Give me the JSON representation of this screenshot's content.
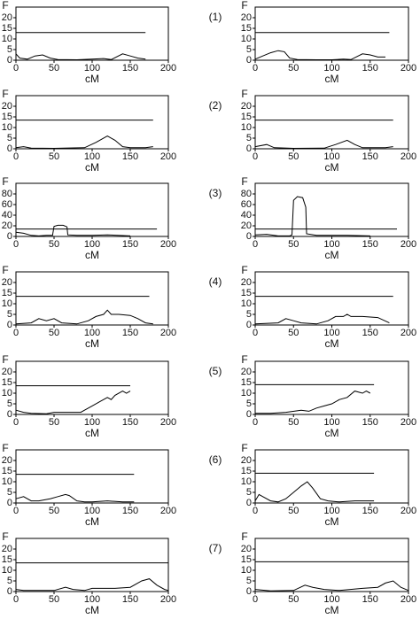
{
  "chart_data": [
    {
      "type": "line",
      "y_label": "F",
      "x_label": "cM",
      "panel": "(1)",
      "xlim": [
        0,
        200
      ],
      "xticks": [
        0,
        50,
        100,
        150,
        200
      ],
      "ylim": [
        0,
        25
      ],
      "yticks": [
        0,
        5,
        10,
        15,
        20
      ],
      "series": [
        {
          "color": "#000000",
          "x": [
            0,
            5,
            15,
            25,
            35,
            45,
            55,
            80,
            100,
            115,
            125,
            140,
            150,
            160,
            170
          ],
          "values": [
            3,
            1,
            0.5,
            2,
            2.5,
            1,
            0.3,
            0.2,
            0.5,
            0.8,
            0.3,
            3,
            2,
            1,
            0.5
          ]
        },
        {
          "color": "#000000",
          "x": [
            0,
            170
          ],
          "values": [
            13,
            13
          ]
        }
      ]
    },
    {
      "type": "line",
      "y_label": "F",
      "x_label": "cM",
      "xlim": [
        0,
        200
      ],
      "xticks": [
        0,
        50,
        100,
        150,
        200
      ],
      "ylim": [
        0,
        25
      ],
      "yticks": [
        0,
        5,
        10,
        15,
        20
      ],
      "series": [
        {
          "color": "#000000",
          "x": [
            0,
            10,
            20,
            30,
            38,
            45,
            55,
            80,
            100,
            115,
            125,
            140,
            150,
            160,
            170
          ],
          "values": [
            0.5,
            2,
            3.5,
            4.5,
            4,
            1,
            0.3,
            0.2,
            0.2,
            0.5,
            0.3,
            3,
            2.5,
            1.5,
            1.5
          ]
        },
        {
          "color": "#000000",
          "x": [
            0,
            175
          ],
          "values": [
            13,
            13
          ]
        }
      ]
    },
    {
      "type": "line",
      "y_label": "F",
      "x_label": "cM",
      "panel": "(2)",
      "xlim": [
        0,
        200
      ],
      "xticks": [
        0,
        50,
        100,
        150,
        200
      ],
      "ylim": [
        0,
        25
      ],
      "yticks": [
        0,
        5,
        10,
        15,
        20
      ],
      "series": [
        {
          "color": "#000000",
          "x": [
            0,
            10,
            20,
            50,
            90,
            105,
            120,
            130,
            140,
            150,
            170,
            180
          ],
          "values": [
            0.5,
            1,
            0.3,
            0.2,
            0.5,
            3,
            6,
            4,
            1,
            0.5,
            0.5,
            1
          ]
        },
        {
          "color": "#000000",
          "x": [
            0,
            180
          ],
          "values": [
            13.5,
            13.5
          ]
        }
      ]
    },
    {
      "type": "line",
      "y_label": "F",
      "x_label": "cM",
      "xlim": [
        0,
        200
      ],
      "xticks": [
        0,
        50,
        100,
        150,
        200
      ],
      "ylim": [
        0,
        25
      ],
      "yticks": [
        0,
        5,
        10,
        15,
        20
      ],
      "series": [
        {
          "color": "#000000",
          "x": [
            0,
            15,
            25,
            50,
            90,
            105,
            120,
            130,
            140,
            170,
            180
          ],
          "values": [
            1,
            2,
            0.5,
            0.2,
            0.3,
            2,
            4,
            2,
            0.5,
            0.5,
            1
          ]
        },
        {
          "color": "#000000",
          "x": [
            0,
            180
          ],
          "values": [
            13.5,
            13.5
          ]
        }
      ]
    },
    {
      "type": "line",
      "y_label": "F",
      "x_label": "cM",
      "panel": "(3)",
      "xlim": [
        0,
        200
      ],
      "xticks": [
        0,
        50,
        100,
        150,
        200
      ],
      "ylim": [
        0,
        100
      ],
      "yticks": [
        0,
        20,
        40,
        60,
        80
      ],
      "series": [
        {
          "color": "#000000",
          "x": [
            0,
            10,
            20,
            30,
            40,
            48,
            50,
            55,
            62,
            67,
            68,
            80,
            100,
            120,
            150
          ],
          "values": [
            8,
            6,
            2,
            1,
            2,
            2,
            19,
            21,
            21,
            18,
            3,
            2,
            2,
            3,
            1
          ]
        },
        {
          "color": "#000000",
          "x": [
            0,
            185
          ],
          "values": [
            14,
            14
          ]
        }
      ]
    },
    {
      "type": "line",
      "y_label": "F",
      "x_label": "cM",
      "xlim": [
        0,
        200
      ],
      "xticks": [
        0,
        50,
        100,
        150,
        200
      ],
      "ylim": [
        0,
        100
      ],
      "yticks": [
        0,
        20,
        40,
        60,
        80
      ],
      "series": [
        {
          "color": "#000000",
          "x": [
            0,
            15,
            30,
            45,
            48,
            50,
            55,
            62,
            66,
            67,
            80,
            120,
            150
          ],
          "values": [
            3,
            4,
            1,
            1,
            3,
            68,
            75,
            73,
            55,
            5,
            2,
            2,
            1
          ]
        },
        {
          "color": "#000000",
          "x": [
            0,
            185
          ],
          "values": [
            14,
            14
          ]
        }
      ]
    },
    {
      "type": "line",
      "y_label": "F",
      "x_label": "cM",
      "panel": "(4)",
      "xlim": [
        0,
        200
      ],
      "xticks": [
        0,
        50,
        100,
        150,
        200
      ],
      "ylim": [
        0,
        25
      ],
      "yticks": [
        0,
        5,
        10,
        15,
        20
      ],
      "series": [
        {
          "color": "#000000",
          "x": [
            0,
            20,
            30,
            40,
            50,
            60,
            80,
            95,
            105,
            115,
            120,
            125,
            135,
            150,
            160,
            170,
            180
          ],
          "values": [
            0.5,
            1,
            3,
            2,
            3,
            1,
            0.5,
            2,
            4,
            5,
            7,
            5,
            5,
            4.5,
            3,
            1,
            0.5
          ]
        },
        {
          "color": "#000000",
          "x": [
            0,
            175
          ],
          "values": [
            13.5,
            13.5
          ]
        }
      ]
    },
    {
      "type": "line",
      "y_label": "F",
      "x_label": "cM",
      "xlim": [
        0,
        200
      ],
      "xticks": [
        0,
        50,
        100,
        150,
        200
      ],
      "ylim": [
        0,
        25
      ],
      "yticks": [
        0,
        5,
        10,
        15,
        20
      ],
      "series": [
        {
          "color": "#000000",
          "x": [
            0,
            30,
            40,
            50,
            60,
            80,
            95,
            105,
            115,
            120,
            125,
            140,
            160,
            175
          ],
          "values": [
            0.5,
            1,
            3,
            2,
            1,
            0.5,
            2,
            4,
            4,
            5,
            4,
            4,
            3.5,
            1
          ]
        },
        {
          "color": "#000000",
          "x": [
            0,
            180
          ],
          "values": [
            13.5,
            13.5
          ]
        }
      ]
    },
    {
      "type": "line",
      "y_label": "F",
      "x_label": "cM",
      "panel": "(5)",
      "xlim": [
        0,
        200
      ],
      "xticks": [
        0,
        50,
        100,
        150,
        200
      ],
      "ylim": [
        0,
        25
      ],
      "yticks": [
        0,
        5,
        10,
        15,
        20
      ],
      "series": [
        {
          "color": "#000000",
          "x": [
            0,
            10,
            20,
            40,
            50,
            70,
            85,
            90,
            100,
            110,
            120,
            125,
            130,
            140,
            145,
            150
          ],
          "values": [
            2,
            1,
            0.5,
            0.3,
            1,
            1,
            1,
            2,
            4,
            6,
            8,
            7,
            9,
            11,
            10,
            11
          ]
        },
        {
          "color": "#000000",
          "x": [
            0,
            150
          ],
          "values": [
            13.5,
            13.5
          ]
        }
      ]
    },
    {
      "type": "line",
      "y_label": "F",
      "x_label": "cM",
      "xlim": [
        0,
        200
      ],
      "xticks": [
        0,
        50,
        100,
        150,
        200
      ],
      "ylim": [
        0,
        25
      ],
      "yticks": [
        0,
        5,
        10,
        15,
        20
      ],
      "series": [
        {
          "color": "#000000",
          "x": [
            0,
            20,
            40,
            60,
            70,
            80,
            90,
            100,
            110,
            120,
            130,
            140,
            145,
            150
          ],
          "values": [
            0.5,
            0.5,
            1,
            2,
            1.5,
            3,
            4,
            5,
            7,
            8,
            11,
            10,
            11,
            10
          ]
        },
        {
          "color": "#000000",
          "x": [
            0,
            155
          ],
          "values": [
            14,
            14
          ]
        }
      ]
    },
    {
      "type": "line",
      "y_label": "F",
      "x_label": "cM",
      "panel": "(6)",
      "xlim": [
        0,
        200
      ],
      "xticks": [
        0,
        50,
        100,
        150,
        200
      ],
      "ylim": [
        0,
        25
      ],
      "yticks": [
        0,
        5,
        10,
        15,
        20
      ],
      "series": [
        {
          "color": "#000000",
          "x": [
            0,
            10,
            20,
            30,
            45,
            55,
            65,
            70,
            80,
            90,
            100,
            120,
            140,
            155
          ],
          "values": [
            2,
            3,
            1,
            1,
            2,
            3,
            4,
            3.5,
            1,
            0.5,
            0.5,
            1,
            0.5,
            0.5
          ]
        },
        {
          "color": "#000000",
          "x": [
            0,
            155
          ],
          "values": [
            13.5,
            13.5
          ]
        }
      ]
    },
    {
      "type": "line",
      "y_label": "F",
      "x_label": "cM",
      "xlim": [
        0,
        200
      ],
      "xticks": [
        0,
        50,
        100,
        150,
        200
      ],
      "ylim": [
        0,
        25
      ],
      "yticks": [
        0,
        5,
        10,
        15,
        20
      ],
      "series": [
        {
          "color": "#000000",
          "x": [
            0,
            5,
            10,
            20,
            30,
            40,
            50,
            60,
            68,
            75,
            85,
            95,
            110,
            130,
            155
          ],
          "values": [
            1,
            4,
            3,
            1,
            0.5,
            2,
            5,
            8,
            10,
            7,
            2,
            1,
            0.5,
            1,
            1
          ]
        },
        {
          "color": "#000000",
          "x": [
            0,
            155
          ],
          "values": [
            14,
            14
          ]
        }
      ]
    },
    {
      "type": "line",
      "y_label": "F",
      "x_label": "cM",
      "panel": "(7)",
      "xlim": [
        0,
        200
      ],
      "xticks": [
        0,
        50,
        100,
        150,
        200
      ],
      "ylim": [
        0,
        25
      ],
      "yticks": [
        0,
        5,
        10,
        15,
        20
      ],
      "series": [
        {
          "color": "#000000",
          "x": [
            0,
            10,
            50,
            65,
            75,
            90,
            100,
            130,
            150,
            165,
            175,
            185,
            195,
            200
          ],
          "values": [
            1,
            0.5,
            0.5,
            2,
            1,
            0.5,
            1.5,
            1.5,
            2,
            5,
            6,
            3,
            1,
            0.5
          ]
        },
        {
          "color": "#000000",
          "x": [
            0,
            200
          ],
          "values": [
            13.5,
            13.5
          ]
        }
      ]
    },
    {
      "type": "line",
      "y_label": "F",
      "x_label": "cM",
      "xlim": [
        0,
        200
      ],
      "xticks": [
        0,
        50,
        100,
        150,
        200
      ],
      "ylim": [
        0,
        25
      ],
      "yticks": [
        0,
        5,
        10,
        15,
        20
      ],
      "series": [
        {
          "color": "#000000",
          "x": [
            0,
            20,
            50,
            65,
            75,
            90,
            110,
            140,
            160,
            170,
            180,
            190,
            200
          ],
          "values": [
            1,
            0.3,
            0.5,
            3,
            2,
            1,
            0.5,
            1.5,
            2,
            4,
            5,
            2,
            0.5
          ]
        },
        {
          "color": "#000000",
          "x": [
            0,
            200
          ],
          "values": [
            14,
            14
          ]
        }
      ]
    }
  ]
}
